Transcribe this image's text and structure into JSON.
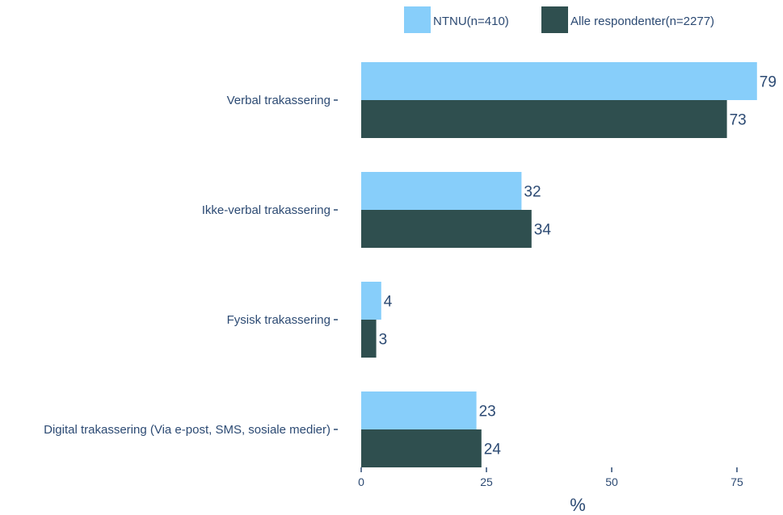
{
  "chart_data": {
    "type": "bar",
    "orientation": "horizontal",
    "categories": [
      "Verbal trakassering",
      "Ikke-verbal trakassering",
      "Fysisk trakassering",
      "Digital trakassering (Via e-post, SMS, sosiale medier)"
    ],
    "series": [
      {
        "name": "NTNU(n=410)",
        "values": [
          79,
          32,
          4,
          23
        ],
        "color": "#87cefa"
      },
      {
        "name": "Alle respondenter(n=2277)",
        "values": [
          73,
          34,
          3,
          24
        ],
        "color": "#2f4f4f"
      }
    ],
    "xlabel": "%",
    "ylabel": "",
    "xlim": [
      0,
      80
    ],
    "xticks": [
      0,
      25,
      50,
      75
    ],
    "legend_position": "top-right",
    "grid": false
  }
}
